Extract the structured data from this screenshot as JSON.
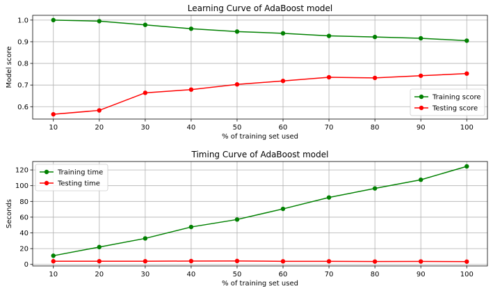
{
  "chart_data": [
    {
      "type": "line",
      "title": "Learning Curve of AdaBoost model",
      "xlabel": "% of training set used",
      "ylabel": "Model score",
      "x": [
        10,
        20,
        30,
        40,
        50,
        60,
        70,
        80,
        90,
        100
      ],
      "xticks": [
        10,
        20,
        30,
        40,
        50,
        60,
        70,
        80,
        90,
        100
      ],
      "yticks": [
        0.6,
        0.7,
        0.8,
        0.9,
        1.0
      ],
      "ytick_labels": [
        "0.6",
        "0.7",
        "0.8",
        "0.9",
        "1.0"
      ],
      "xlim": [
        5.5,
        104.5
      ],
      "ylim": [
        0.543,
        1.022
      ],
      "grid": true,
      "legend_position": "lower right",
      "series": [
        {
          "name": "Training score",
          "color": "#008000",
          "values": [
            1.0,
            0.995,
            0.978,
            0.96,
            0.947,
            0.939,
            0.927,
            0.922,
            0.916,
            0.905
          ]
        },
        {
          "name": "Testing score",
          "color": "#ff0000",
          "values": [
            0.565,
            0.583,
            0.664,
            0.679,
            0.703,
            0.719,
            0.736,
            0.733,
            0.743,
            0.753
          ]
        }
      ]
    },
    {
      "type": "line",
      "title": "Timing Curve of AdaBoost model",
      "xlabel": "% of training set used",
      "ylabel": "Seconds",
      "x": [
        10,
        20,
        30,
        40,
        50,
        60,
        70,
        80,
        90,
        100
      ],
      "xticks": [
        10,
        20,
        30,
        40,
        50,
        60,
        70,
        80,
        90,
        100
      ],
      "yticks": [
        0,
        20,
        40,
        60,
        80,
        100,
        120
      ],
      "ytick_labels": [
        "0",
        "20",
        "40",
        "60",
        "80",
        "100",
        "120"
      ],
      "xlim": [
        5.5,
        104.5
      ],
      "ylim": [
        -2,
        130.7
      ],
      "grid": true,
      "legend_position": "upper left",
      "series": [
        {
          "name": "Training time",
          "color": "#008000",
          "values": [
            11,
            22,
            33,
            47.5,
            57,
            70.5,
            85,
            96.5,
            107.5,
            124.5
          ]
        },
        {
          "name": "Testing time",
          "color": "#ff0000",
          "values": [
            4,
            4,
            4,
            4.2,
            4.3,
            3.9,
            3.9,
            3.6,
            3.7,
            3.5
          ]
        }
      ]
    }
  ]
}
